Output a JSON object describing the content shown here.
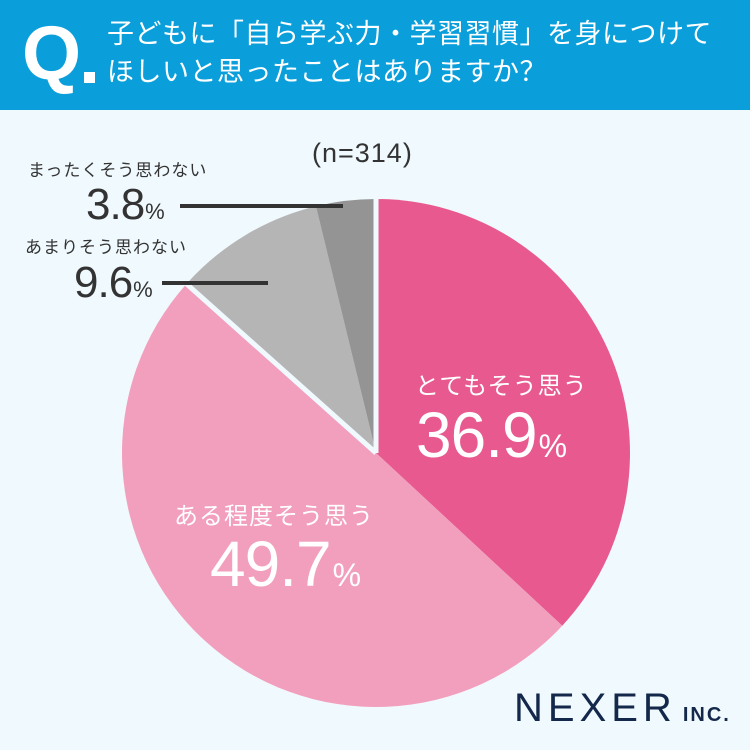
{
  "header": {
    "q_mark": "Q",
    "question_line1": "子どもに「自ら学ぶ力・学習習慣」を身につけて",
    "question_line2": "ほしいと思ったことはありますか？",
    "background_color": "#0a9fdb"
  },
  "sample_size": "(n=314)",
  "segments": [
    {
      "label": "とてもそう思う",
      "value": "36.9",
      "pct": "%",
      "color": "#e85a8f"
    },
    {
      "label": "ある程度そう思う",
      "value": "49.7",
      "pct": "%",
      "color": "#f29fbd"
    },
    {
      "label": "あまりそう思わない",
      "value": "9.6",
      "pct": "%",
      "color": "#b5b5b5"
    },
    {
      "label": "まったくそう思わない",
      "value": "3.8",
      "pct": "%",
      "color": "#949494"
    }
  ],
  "logo": {
    "main": "NEXER",
    "sub": "INC."
  },
  "chart_data": {
    "type": "pie",
    "title": "子どもに「自ら学ぶ力・学習習慣」を身につけてほしいと思ったことはありますか？",
    "subtitle": "(n=314)",
    "categories": [
      "とてもそう思う",
      "ある程度そう思う",
      "あまりそう思わない",
      "まったくそう思わない"
    ],
    "values": [
      36.9,
      49.7,
      9.6,
      3.8
    ],
    "unit": "%",
    "colors": [
      "#e85a8f",
      "#f29fbd",
      "#b5b5b5",
      "#949494"
    ],
    "start_angle": "12 o'clock, clockwise",
    "legend": "none (direct labels)"
  }
}
